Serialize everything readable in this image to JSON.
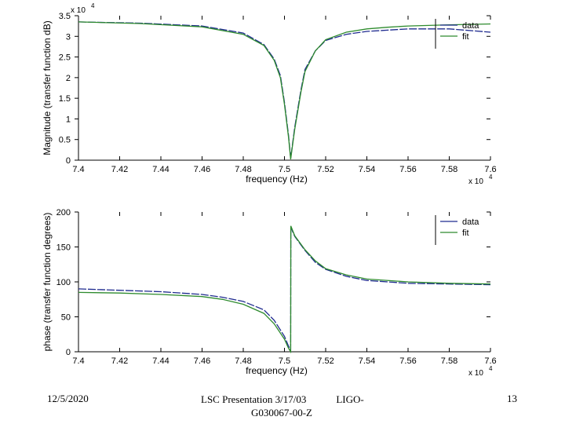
{
  "footer": {
    "date": "12/5/2020",
    "presentation_line1": "LSC Presentation 3/17/03",
    "presentation_line1b": "LIGO-",
    "presentation_line2": "G030067-00-Z",
    "page": "13"
  },
  "colors": {
    "data": "#1f2b8f",
    "fit": "#2e8b2e",
    "axis": "#000000"
  },
  "chart_data": [
    {
      "type": "line",
      "xlabel": "frequency (Hz)",
      "ylabel": "Magnitude (transfer function dB)",
      "x_multiplier": "x 10",
      "x_multiplier_exp": "4",
      "y_multiplier": "x 10",
      "y_multiplier_exp": "4",
      "xlim": [
        7.4,
        7.6
      ],
      "ylim": [
        0,
        3.5
      ],
      "xticks": [
        "7.4",
        "7.42",
        "7.44",
        "7.46",
        "7.48",
        "7.5",
        "7.52",
        "7.54",
        "7.56",
        "7.58",
        "7.6"
      ],
      "yticks": [
        "0",
        "0.5",
        "1",
        "1.5",
        "2",
        "2.5",
        "3",
        "3.5"
      ],
      "legend": {
        "position": "top-right",
        "entries": [
          "data",
          "fit"
        ]
      },
      "series": [
        {
          "name": "data",
          "x": [
            7.4,
            7.43,
            7.46,
            7.48,
            7.49,
            7.495,
            7.498,
            7.5,
            7.502,
            7.503,
            7.505,
            7.508,
            7.51,
            7.515,
            7.52,
            7.53,
            7.54,
            7.55,
            7.56,
            7.58,
            7.6
          ],
          "values": [
            3.35,
            3.32,
            3.25,
            3.08,
            2.8,
            2.45,
            2.05,
            1.4,
            0.6,
            0.05,
            0.8,
            1.7,
            2.2,
            2.65,
            2.9,
            3.05,
            3.12,
            3.15,
            3.18,
            3.18,
            3.1
          ]
        },
        {
          "name": "fit",
          "x": [
            7.4,
            7.43,
            7.46,
            7.48,
            7.49,
            7.495,
            7.498,
            7.5,
            7.502,
            7.503,
            7.505,
            7.508,
            7.51,
            7.515,
            7.52,
            7.53,
            7.54,
            7.55,
            7.56,
            7.58,
            7.6
          ],
          "values": [
            3.35,
            3.31,
            3.23,
            3.05,
            2.78,
            2.42,
            2.0,
            1.35,
            0.55,
            0.02,
            0.75,
            1.65,
            2.15,
            2.65,
            2.92,
            3.1,
            3.18,
            3.22,
            3.25,
            3.28,
            3.3
          ]
        }
      ]
    },
    {
      "type": "line",
      "xlabel": "frequency (Hz)",
      "ylabel": "phase (transfer function degrees)",
      "x_multiplier": "x 10",
      "x_multiplier_exp": "4",
      "xlim": [
        7.4,
        7.6
      ],
      "ylim": [
        0,
        200
      ],
      "xticks": [
        "7.4",
        "7.42",
        "7.44",
        "7.46",
        "7.48",
        "7.5",
        "7.52",
        "7.54",
        "7.56",
        "7.58",
        "7.6"
      ],
      "yticks": [
        "0",
        "50",
        "100",
        "150",
        "200"
      ],
      "legend": {
        "position": "top-right",
        "entries": [
          "data",
          "fit"
        ]
      },
      "series": [
        {
          "name": "data",
          "x": [
            7.4,
            7.42,
            7.44,
            7.46,
            7.47,
            7.48,
            7.49,
            7.495,
            7.5,
            7.502,
            7.503,
            7.5031,
            7.505,
            7.51,
            7.515,
            7.52,
            7.53,
            7.54,
            7.56,
            7.58,
            7.6
          ],
          "values": [
            90,
            88,
            86,
            82,
            78,
            72,
            60,
            45,
            22,
            8,
            2,
            178,
            165,
            145,
            128,
            118,
            108,
            102,
            98,
            97,
            96
          ]
        },
        {
          "name": "fit",
          "x": [
            7.4,
            7.42,
            7.44,
            7.46,
            7.47,
            7.48,
            7.49,
            7.495,
            7.5,
            7.502,
            7.503,
            7.5031,
            7.505,
            7.51,
            7.515,
            7.52,
            7.53,
            7.54,
            7.56,
            7.58,
            7.6
          ],
          "values": [
            85,
            84,
            82,
            79,
            75,
            68,
            55,
            40,
            18,
            5,
            0,
            180,
            166,
            146,
            130,
            119,
            110,
            104,
            100,
            98,
            97
          ]
        }
      ]
    }
  ]
}
